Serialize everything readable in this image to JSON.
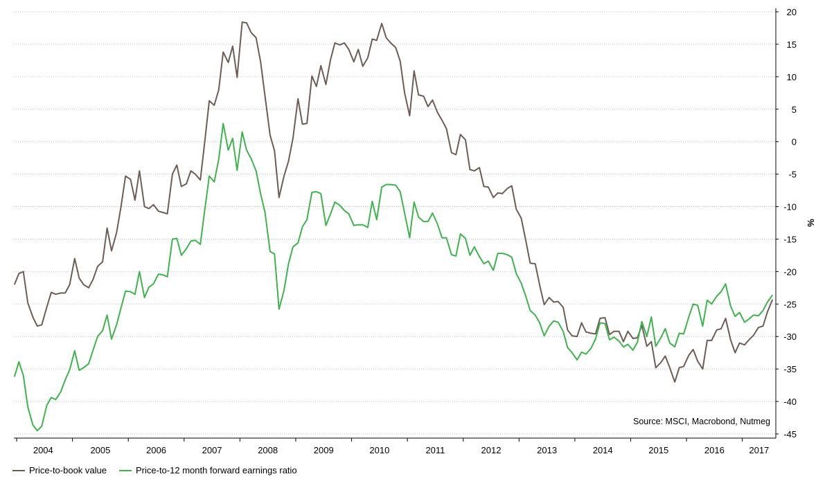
{
  "chart_data": {
    "type": "line",
    "ylabel": "%",
    "ylim": [
      -45,
      20
    ],
    "yticks": [
      20,
      15,
      10,
      5,
      0,
      -5,
      -10,
      -15,
      -20,
      -25,
      -30,
      -35,
      -40,
      -45
    ],
    "x_year_labels": [
      "2004",
      "2005",
      "2006",
      "2007",
      "2008",
      "2009",
      "2010",
      "2011",
      "2012",
      "2013",
      "2014",
      "2015",
      "2016",
      "2017"
    ],
    "xlim": [
      2003.95,
      2017.6
    ],
    "grid": true,
    "legend_position": "bottom-left",
    "annotation": "Source: MSCI, Macrobond, Nutmeg",
    "series": [
      {
        "name": "Price-to-book value",
        "color": "#6d5b55",
        "x": [
          2003.96,
          2004.04,
          2004.12,
          2004.2,
          2004.29,
          2004.37,
          2004.45,
          2004.54,
          2004.62,
          2004.7,
          2004.79,
          2004.87,
          2004.95,
          2005.04,
          2005.12,
          2005.2,
          2005.29,
          2005.37,
          2005.45,
          2005.54,
          2005.62,
          2005.7,
          2005.79,
          2005.87,
          2005.95,
          2006.04,
          2006.12,
          2006.2,
          2006.29,
          2006.37,
          2006.45,
          2006.54,
          2006.62,
          2006.7,
          2006.79,
          2006.87,
          2006.95,
          2007.04,
          2007.12,
          2007.2,
          2007.29,
          2007.37,
          2007.45,
          2007.54,
          2007.62,
          2007.7,
          2007.79,
          2007.87,
          2007.95,
          2008.04,
          2008.12,
          2008.2,
          2008.29,
          2008.37,
          2008.45,
          2008.54,
          2008.62,
          2008.7,
          2008.79,
          2008.87,
          2008.95,
          2009.04,
          2009.12,
          2009.2,
          2009.29,
          2009.37,
          2009.45,
          2009.54,
          2009.62,
          2009.7,
          2009.79,
          2009.87,
          2009.95,
          2010.04,
          2010.12,
          2010.2,
          2010.29,
          2010.37,
          2010.45,
          2010.54,
          2010.62,
          2010.7,
          2010.79,
          2010.87,
          2010.95,
          2011.04,
          2011.12,
          2011.2,
          2011.29,
          2011.37,
          2011.45,
          2011.54,
          2011.62,
          2011.7,
          2011.79,
          2011.87,
          2011.95,
          2012.04,
          2012.12,
          2012.2,
          2012.29,
          2012.37,
          2012.45,
          2012.54,
          2012.62,
          2012.7,
          2012.79,
          2012.87,
          2012.95,
          2013.04,
          2013.12,
          2013.2,
          2013.29,
          2013.37,
          2013.45,
          2013.54,
          2013.62,
          2013.7,
          2013.79,
          2013.87,
          2013.95,
          2014.04,
          2014.12,
          2014.2,
          2014.29,
          2014.37,
          2014.45,
          2014.54,
          2014.62,
          2014.7,
          2014.79,
          2014.87,
          2014.95,
          2015.04,
          2015.12,
          2015.2,
          2015.29,
          2015.37,
          2015.45,
          2015.54,
          2015.62,
          2015.7,
          2015.79,
          2015.87,
          2015.95,
          2016.04,
          2016.12,
          2016.2,
          2016.29,
          2016.37,
          2016.45,
          2016.54,
          2016.62,
          2016.7,
          2016.79,
          2016.87,
          2016.95,
          2017.04,
          2017.12,
          2017.2,
          2017.29,
          2017.37,
          2017.45,
          2017.54
        ],
        "y": [
          -22.0,
          -20.3,
          -20.0,
          -24.8,
          -27.0,
          -28.4,
          -28.2,
          -25.5,
          -23.2,
          -23.5,
          -23.3,
          -23.3,
          -22.0,
          -18.0,
          -21.0,
          -22.0,
          -22.5,
          -21.2,
          -19.2,
          -18.5,
          -13.3,
          -16.8,
          -14.0,
          -10.0,
          -5.3,
          -5.8,
          -9.0,
          -4.5,
          -10.0,
          -10.3,
          -9.7,
          -10.7,
          -10.9,
          -11.1,
          -5.0,
          -3.6,
          -6.9,
          -6.5,
          -4.5,
          -5.0,
          -5.9,
          0.0,
          6.3,
          5.6,
          8.0,
          13.8,
          12.2,
          14.7,
          9.9,
          18.4,
          18.3,
          16.8,
          16.0,
          12.3,
          7.0,
          1.0,
          -1.4,
          -8.6,
          -5.3,
          -3.0,
          0.5,
          6.6,
          2.7,
          2.8,
          10.1,
          8.5,
          11.7,
          8.8,
          12.5,
          15.2,
          14.9,
          15.2,
          14.2,
          12.3,
          14.2,
          11.6,
          12.9,
          15.8,
          15.6,
          18.2,
          16.0,
          15.2,
          14.5,
          12.4,
          7.5,
          4.0,
          10.9,
          7.2,
          7.0,
          5.4,
          6.4,
          4.5,
          3.3,
          2.0,
          -1.7,
          -2.0,
          1.1,
          0.3,
          -4.3,
          -4.5,
          -4.0,
          -6.9,
          -7.0,
          -8.6,
          -7.9,
          -8.0,
          -7.2,
          -6.8,
          -10.4,
          -11.8,
          -15.2,
          -18.7,
          -18.8,
          -22.1,
          -25.1,
          -24.0,
          -24.7,
          -24.6,
          -25.5,
          -29.0,
          -29.9,
          -30.0,
          -27.9,
          -29.3,
          -29.5,
          -29.6,
          -27.2,
          -27.1,
          -29.7,
          -29.2,
          -29.2,
          -30.8,
          -29.2,
          -30.3,
          -30.2,
          -28.3,
          -31.5,
          -30.8,
          -34.8,
          -34.0,
          -33.0,
          -34.8,
          -37.0,
          -34.8,
          -34.6,
          -32.9,
          -32.0,
          -33.8,
          -35.0,
          -30.6,
          -30.6,
          -29.0,
          -28.8,
          -27.2,
          -30.5,
          -32.5,
          -31.0,
          -31.3,
          -30.5,
          -29.8,
          -28.6,
          -28.4,
          -26.2,
          -24.3
        ]
      },
      {
        "name": "Price-to-12 month forward earnings ratio",
        "color": "#3cb44b",
        "x": [
          2003.96,
          2004.04,
          2004.12,
          2004.2,
          2004.29,
          2004.37,
          2004.45,
          2004.54,
          2004.62,
          2004.7,
          2004.79,
          2004.87,
          2004.95,
          2005.04,
          2005.12,
          2005.2,
          2005.29,
          2005.37,
          2005.45,
          2005.54,
          2005.62,
          2005.7,
          2005.79,
          2005.87,
          2005.95,
          2006.04,
          2006.12,
          2006.2,
          2006.29,
          2006.37,
          2006.45,
          2006.54,
          2006.62,
          2006.7,
          2006.79,
          2006.87,
          2006.95,
          2007.04,
          2007.12,
          2007.2,
          2007.29,
          2007.37,
          2007.45,
          2007.54,
          2007.62,
          2007.7,
          2007.79,
          2007.87,
          2007.95,
          2008.04,
          2008.12,
          2008.2,
          2008.29,
          2008.37,
          2008.45,
          2008.54,
          2008.62,
          2008.7,
          2008.79,
          2008.87,
          2008.95,
          2009.04,
          2009.12,
          2009.2,
          2009.29,
          2009.37,
          2009.45,
          2009.54,
          2009.62,
          2009.7,
          2009.79,
          2009.87,
          2009.95,
          2010.04,
          2010.12,
          2010.2,
          2010.29,
          2010.37,
          2010.45,
          2010.54,
          2010.62,
          2010.7,
          2010.79,
          2010.87,
          2010.95,
          2011.04,
          2011.12,
          2011.2,
          2011.29,
          2011.37,
          2011.45,
          2011.54,
          2011.62,
          2011.7,
          2011.79,
          2011.87,
          2011.95,
          2012.04,
          2012.12,
          2012.2,
          2012.29,
          2012.37,
          2012.45,
          2012.54,
          2012.62,
          2012.7,
          2012.79,
          2012.87,
          2012.95,
          2013.04,
          2013.12,
          2013.2,
          2013.29,
          2013.37,
          2013.45,
          2013.54,
          2013.62,
          2013.7,
          2013.79,
          2013.87,
          2013.95,
          2014.04,
          2014.12,
          2014.2,
          2014.29,
          2014.37,
          2014.45,
          2014.54,
          2014.62,
          2014.7,
          2014.79,
          2014.87,
          2014.95,
          2015.04,
          2015.12,
          2015.2,
          2015.29,
          2015.37,
          2015.45,
          2015.54,
          2015.62,
          2015.7,
          2015.79,
          2015.87,
          2015.95,
          2016.04,
          2016.12,
          2016.2,
          2016.29,
          2016.37,
          2016.45,
          2016.54,
          2016.62,
          2016.7,
          2016.79,
          2016.87,
          2016.95,
          2017.04,
          2017.12,
          2017.2,
          2017.29,
          2017.37,
          2017.45,
          2017.54
        ],
        "y": [
          -36.2,
          -33.9,
          -36.0,
          -40.8,
          -43.6,
          -44.5,
          -43.8,
          -40.6,
          -39.4,
          -39.7,
          -38.5,
          -36.7,
          -35.1,
          -32.2,
          -35.2,
          -34.8,
          -34.2,
          -32.1,
          -30.0,
          -29.1,
          -26.7,
          -30.4,
          -28.2,
          -25.6,
          -23.0,
          -23.1,
          -23.5,
          -20.0,
          -24.0,
          -22.4,
          -21.9,
          -20.4,
          -20.5,
          -20.8,
          -15.0,
          -14.9,
          -17.5,
          -16.5,
          -15.3,
          -15.2,
          -15.8,
          -10.5,
          -5.3,
          -6.2,
          -2.7,
          2.8,
          -1.3,
          0.5,
          -4.4,
          1.5,
          -1.3,
          -2.6,
          -4.5,
          -8.0,
          -10.9,
          -16.9,
          -17.3,
          -25.8,
          -22.9,
          -18.8,
          -16.2,
          -15.6,
          -13.1,
          -12.0,
          -7.8,
          -7.7,
          -8.0,
          -12.9,
          -11.2,
          -9.3,
          -9.8,
          -10.6,
          -11.1,
          -12.9,
          -12.8,
          -12.8,
          -13.2,
          -9.2,
          -12.0,
          -7.0,
          -6.6,
          -6.6,
          -6.7,
          -7.7,
          -11.0,
          -14.8,
          -9.3,
          -11.6,
          -12.3,
          -12.3,
          -11.0,
          -12.7,
          -14.8,
          -14.8,
          -17.4,
          -17.6,
          -14.2,
          -14.9,
          -17.5,
          -16.2,
          -17.7,
          -18.8,
          -18.4,
          -19.8,
          -17.2,
          -17.2,
          -17.4,
          -17.8,
          -20.3,
          -21.8,
          -23.8,
          -26.0,
          -26.7,
          -27.9,
          -29.9,
          -28.4,
          -27.6,
          -27.8,
          -29.2,
          -31.7,
          -32.5,
          -33.6,
          -32.4,
          -32.7,
          -31.8,
          -30.4,
          -27.9,
          -28.0,
          -30.5,
          -30.1,
          -30.7,
          -31.6,
          -31.2,
          -32.1,
          -30.9,
          -27.7,
          -30.0,
          -27.0,
          -31.5,
          -30.2,
          -28.8,
          -31.0,
          -31.6,
          -29.5,
          -29.6,
          -27.0,
          -25.0,
          -25.2,
          -28.4,
          -24.4,
          -25.0,
          -23.8,
          -23.1,
          -21.9,
          -25.3,
          -26.9,
          -26.3,
          -27.8,
          -27.3,
          -26.7,
          -26.8,
          -26.0,
          -24.7,
          -23.6
        ]
      }
    ]
  }
}
